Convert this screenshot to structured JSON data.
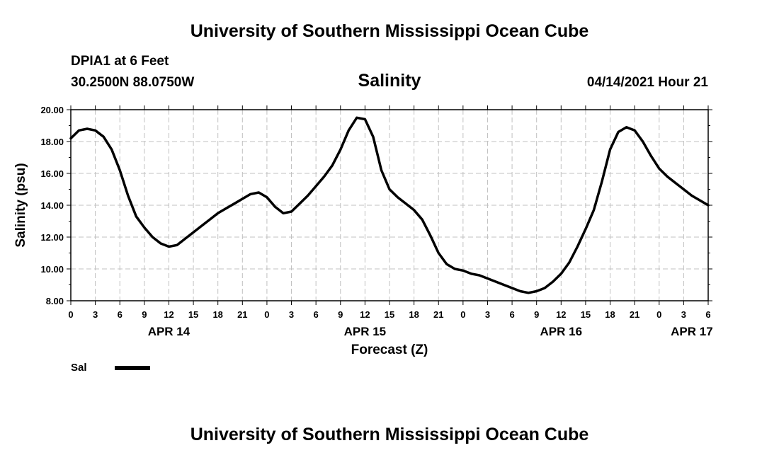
{
  "header": {
    "top_title": "University of Southern Mississippi Ocean Cube",
    "station": "DPIA1 at 6 Feet",
    "coords": "30.2500N  88.0750W",
    "timestamp": "04/14/2021 Hour 21",
    "bottom_title": "University of Southern Mississippi Ocean Cube"
  },
  "legend": {
    "label": "Sal",
    "color": "#000000"
  },
  "chart_data": {
    "type": "line",
    "title": "Salinity",
    "xlabel": "Forecast (Z)",
    "ylabel": "Salinity (psu)",
    "ylim": [
      8,
      20
    ],
    "xlim": [
      0,
      78
    ],
    "grid": true,
    "yticks": [
      "8.00",
      "10.00",
      "12.00",
      "14.00",
      "16.00",
      "18.00",
      "20.00"
    ],
    "yticks_values": [
      8,
      10,
      12,
      14,
      16,
      18,
      20
    ],
    "xticks": [
      {
        "h": 0,
        "label": "0"
      },
      {
        "h": 3,
        "label": "3"
      },
      {
        "h": 6,
        "label": "6"
      },
      {
        "h": 9,
        "label": "9"
      },
      {
        "h": 12,
        "label": "12"
      },
      {
        "h": 15,
        "label": "15"
      },
      {
        "h": 18,
        "label": "18"
      },
      {
        "h": 21,
        "label": "21"
      },
      {
        "h": 24,
        "label": "0"
      },
      {
        "h": 27,
        "label": "3"
      },
      {
        "h": 30,
        "label": "6"
      },
      {
        "h": 33,
        "label": "9"
      },
      {
        "h": 36,
        "label": "12"
      },
      {
        "h": 39,
        "label": "15"
      },
      {
        "h": 42,
        "label": "18"
      },
      {
        "h": 45,
        "label": "21"
      },
      {
        "h": 48,
        "label": "0"
      },
      {
        "h": 51,
        "label": "3"
      },
      {
        "h": 54,
        "label": "6"
      },
      {
        "h": 57,
        "label": "9"
      },
      {
        "h": 60,
        "label": "12"
      },
      {
        "h": 63,
        "label": "15"
      },
      {
        "h": 66,
        "label": "18"
      },
      {
        "h": 69,
        "label": "21"
      },
      {
        "h": 72,
        "label": "0"
      },
      {
        "h": 75,
        "label": "3"
      },
      {
        "h": 78,
        "label": "6"
      }
    ],
    "date_labels": [
      {
        "h": 12,
        "label": "APR 14"
      },
      {
        "h": 36,
        "label": "APR 15"
      },
      {
        "h": 60,
        "label": "APR 16"
      },
      {
        "h": 76,
        "label": "APR 17"
      }
    ],
    "series": [
      {
        "name": "Sal",
        "x": [
          0,
          1,
          2,
          3,
          4,
          5,
          6,
          7,
          8,
          9,
          10,
          11,
          12,
          13,
          14,
          15,
          16,
          17,
          18,
          19,
          20,
          21,
          22,
          23,
          24,
          25,
          26,
          27,
          28,
          29,
          30,
          31,
          32,
          33,
          34,
          35,
          36,
          37,
          38,
          39,
          40,
          41,
          42,
          43,
          44,
          45,
          46,
          47,
          48,
          49,
          50,
          51,
          52,
          53,
          54,
          55,
          56,
          57,
          58,
          59,
          60,
          61,
          62,
          63,
          64,
          65,
          66,
          67,
          68,
          69,
          70,
          71,
          72,
          73,
          74,
          75,
          76,
          77,
          78
        ],
        "values": [
          18.2,
          18.7,
          18.8,
          18.7,
          18.3,
          17.5,
          16.2,
          14.6,
          13.3,
          12.6,
          12.0,
          11.6,
          11.4,
          11.5,
          11.9,
          12.3,
          12.7,
          13.1,
          13.5,
          13.8,
          14.1,
          14.4,
          14.7,
          14.8,
          14.5,
          13.9,
          13.5,
          13.6,
          14.1,
          14.6,
          15.2,
          15.8,
          16.5,
          17.5,
          18.7,
          19.5,
          19.4,
          18.3,
          16.2,
          15.0,
          14.5,
          14.1,
          13.7,
          13.1,
          12.1,
          11.0,
          10.3,
          10.0,
          9.9,
          9.7,
          9.6,
          9.4,
          9.2,
          9.0,
          8.8,
          8.6,
          8.5,
          8.6,
          8.8,
          9.2,
          9.7,
          10.4,
          11.4,
          12.5,
          13.7,
          15.5,
          17.5,
          18.6,
          18.9,
          18.7,
          18.0,
          17.1,
          16.3,
          15.8,
          15.4,
          15.0,
          14.6,
          14.3,
          14.0
        ]
      }
    ]
  }
}
